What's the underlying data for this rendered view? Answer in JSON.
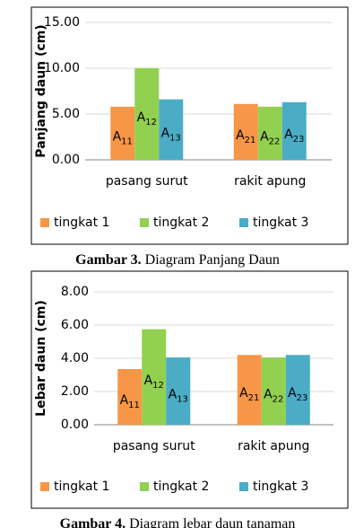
{
  "chart_data": [
    {
      "type": "bar",
      "y_label": "Panjang daun (cm)",
      "categories": [
        "pasang surut",
        "rakit apung"
      ],
      "series": [
        {
          "name": "tingkat 1",
          "color": "#f79646",
          "values": [
            5.8,
            6.1
          ],
          "bar_labels": [
            {
              "text": "A",
              "sub": "11"
            },
            {
              "text": "A",
              "sub": "21"
            }
          ]
        },
        {
          "name": "tingkat 2",
          "color": "#92d050",
          "values": [
            10.0,
            5.8
          ],
          "bar_labels": [
            {
              "text": "A",
              "sub": "12"
            },
            {
              "text": "A",
              "sub": "22"
            }
          ]
        },
        {
          "name": "tingkat 3",
          "color": "#4bacc6",
          "values": [
            6.6,
            6.3
          ],
          "bar_labels": [
            {
              "text": "A",
              "sub": "13"
            },
            {
              "text": "A",
              "sub": "23"
            }
          ]
        }
      ],
      "ylim": [
        0,
        15
      ],
      "yticks": [
        {
          "value": 0,
          "label": "0.00"
        },
        {
          "value": 5,
          "label": "5.00"
        },
        {
          "value": 10,
          "label": "10.00"
        },
        {
          "value": 15,
          "label": "15.00"
        }
      ],
      "grid": true,
      "legend": "bottom"
    },
    {
      "type": "bar",
      "y_label": "Lebar daun (cm)",
      "categories": [
        "pasang surut",
        "rakit apung"
      ],
      "series": [
        {
          "name": "tingkat 1",
          "color": "#f79646",
          "values": [
            3.35,
            4.2
          ],
          "bar_labels": [
            {
              "text": "A",
              "sub": "11"
            },
            {
              "text": "A",
              "sub": "21"
            }
          ]
        },
        {
          "name": "tingkat 2",
          "color": "#92d050",
          "values": [
            5.75,
            4.05
          ],
          "bar_labels": [
            {
              "text": "A",
              "sub": "12"
            },
            {
              "text": "A",
              "sub": "22"
            }
          ]
        },
        {
          "name": "tingkat 3",
          "color": "#4bacc6",
          "values": [
            4.05,
            4.2
          ],
          "bar_labels": [
            {
              "text": "A",
              "sub": "13"
            },
            {
              "text": "A",
              "sub": "23"
            }
          ]
        }
      ],
      "ylim": [
        0,
        8
      ],
      "yticks": [
        {
          "value": 0,
          "label": "0.00"
        },
        {
          "value": 2,
          "label": "2.00"
        },
        {
          "value": 4,
          "label": "4.00"
        },
        {
          "value": 6,
          "label": "6.00"
        },
        {
          "value": 8,
          "label": "8.00"
        }
      ],
      "grid": true,
      "legend": "bottom"
    }
  ],
  "captions": [
    {
      "label": "Gambar 3.",
      "text": "Diagram Panjang Daun"
    },
    {
      "label": "Gambar 4.",
      "text": "Diagram lebar daun tanaman"
    }
  ]
}
